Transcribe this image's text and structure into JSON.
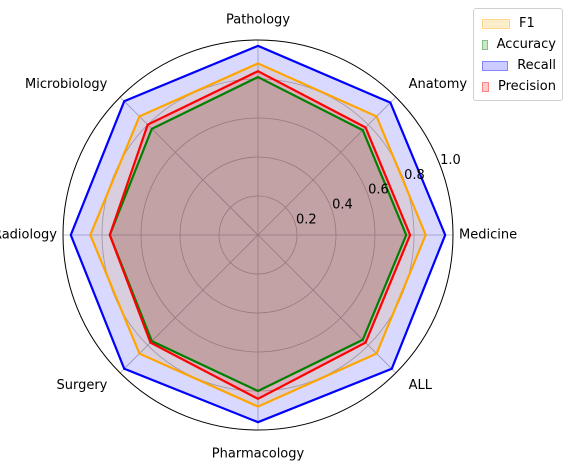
{
  "chart_data": {
    "type": "radar",
    "categories": [
      "Medicine",
      "Anatomy",
      "Pathology",
      "Microbiology",
      "Radiology",
      "Surgery",
      "Pharmacology",
      "ALL"
    ],
    "rticks": [
      "0.2",
      "0.4",
      "0.6",
      "0.8",
      "1.0"
    ],
    "rlim": [
      0,
      1.0
    ],
    "grid": true,
    "legend_position": "top-right",
    "series": [
      {
        "name": "F1",
        "values": [
          0.86,
          0.86,
          0.88,
          0.86,
          0.86,
          0.86,
          0.88,
          0.86
        ],
        "color": "#ffa500"
      },
      {
        "name": "Accuracy",
        "values": [
          0.76,
          0.76,
          0.81,
          0.77,
          0.76,
          0.77,
          0.8,
          0.76
        ],
        "color": "#008000"
      },
      {
        "name": "Recall",
        "values": [
          0.96,
          0.96,
          0.97,
          0.97,
          0.96,
          0.97,
          0.96,
          0.97
        ],
        "color": "#0000ff"
      },
      {
        "name": "Precision",
        "values": [
          0.78,
          0.78,
          0.84,
          0.8,
          0.76,
          0.78,
          0.84,
          0.78
        ],
        "color": "#ff0000"
      }
    ]
  }
}
